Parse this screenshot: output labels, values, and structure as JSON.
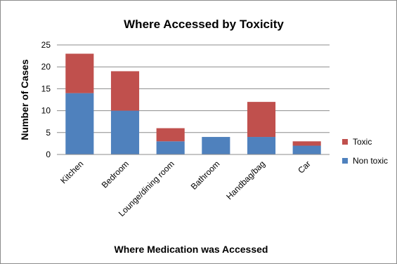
{
  "chart_data": {
    "type": "bar",
    "stacked": true,
    "title": "Where Accessed by Toxicity",
    "xlabel": "Where Medication was Accessed",
    "ylabel": "Number of Cases",
    "ylim": [
      0,
      25
    ],
    "yticks": [
      0,
      5,
      10,
      15,
      20,
      25
    ],
    "grid": true,
    "legend_position": "right",
    "categories": [
      "Kitchen",
      "Bedroom",
      "Lounge/dining room",
      "Bathroom",
      "Handbag/bag",
      "Car"
    ],
    "series": [
      {
        "name": "Non toxic",
        "color": "#4f81bd",
        "values": [
          14,
          10,
          3,
          4,
          4,
          2
        ]
      },
      {
        "name": "Toxic",
        "color": "#c0504d",
        "values": [
          9,
          9,
          3,
          0,
          8,
          1
        ]
      }
    ]
  }
}
